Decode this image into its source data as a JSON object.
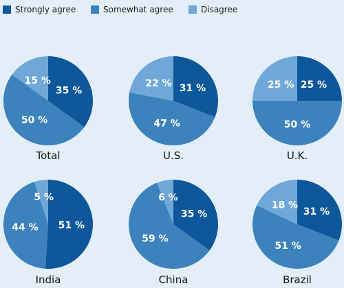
{
  "chart_data": {
    "type": "pie",
    "legend_position": "top-left",
    "series": [
      {
        "name": "Strongly agree",
        "color": "#0d579a"
      },
      {
        "name": "Somewhat agree",
        "color": "#3c82bc"
      },
      {
        "name": "Disagree",
        "color": "#6fa8d8"
      }
    ],
    "charts": [
      {
        "label": "Total",
        "values": [
          35,
          50,
          15
        ]
      },
      {
        "label": "U.S.",
        "values": [
          31,
          47,
          22
        ]
      },
      {
        "label": "U.K.",
        "values": [
          25,
          50,
          25
        ]
      },
      {
        "label": "India",
        "values": [
          51,
          44,
          5
        ]
      },
      {
        "label": "China",
        "values": [
          35,
          59,
          6
        ]
      },
      {
        "label": "Brazil",
        "values": [
          31,
          51,
          18
        ]
      }
    ]
  }
}
